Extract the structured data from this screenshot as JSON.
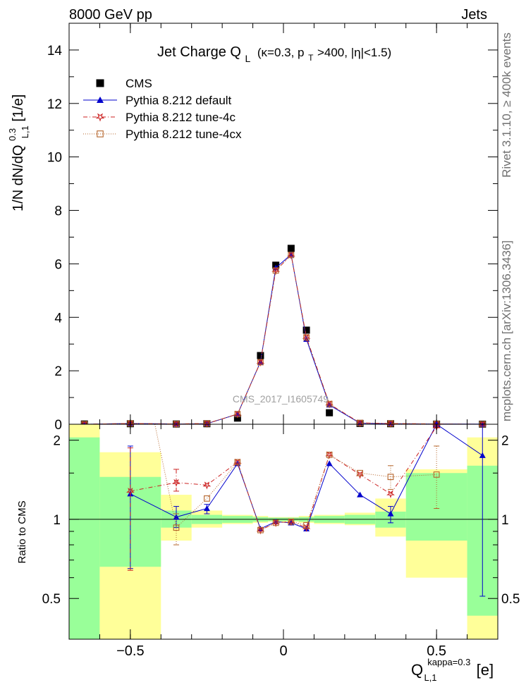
{
  "header": {
    "left": "8000 GeV pp",
    "right": "Jets"
  },
  "side_text": {
    "top": "Rivet 3.1.10, ≥ 400k events",
    "bottom": "mcplots.cern.ch [arXiv:1306.3436]"
  },
  "watermark": "CMS_2017_I1605749",
  "colors": {
    "cms": "#000000",
    "default": "#0000cc",
    "tune4c": "#cc2222",
    "tune4cx": "#b5652b",
    "band_inner": "#99ff99",
    "band_outer": "#ffff99"
  },
  "chart_data": [
    {
      "type": "line",
      "panel": "main",
      "title": "Jet Charge Q_L (κ=0.3, p_T>400, |η|<1.5)",
      "title_parts": {
        "main": "Jet Charge Q",
        "sub": "L",
        "rest1": "(κ=0.3, p",
        "rest_sub": "T",
        "rest2": ">400, |η|<1.5)"
      },
      "ylabel_parts": {
        "a": "1/N dN/dQ",
        "sup": "0.3",
        "sub": "L,1",
        "b": " [1/e]"
      },
      "xlim": [
        -0.7,
        0.7
      ],
      "ylim": [
        0,
        15
      ],
      "yticks": [
        0,
        2,
        4,
        6,
        8,
        10,
        12,
        14
      ],
      "x": [
        -0.65,
        -0.5,
        -0.35,
        -0.25,
        -0.15,
        -0.075,
        -0.025,
        0.025,
        0.075,
        0.15,
        0.25,
        0.35,
        0.5,
        0.65
      ],
      "series": [
        {
          "name": "CMS",
          "key": "cms",
          "marker": "square",
          "values": [
            0.01,
            0.02,
            0.01,
            0.02,
            0.23,
            2.57,
            5.95,
            6.58,
            3.52,
            0.43,
            0.03,
            0.02,
            0.005,
            0.003
          ]
        },
        {
          "name": "Pythia 8.212 default",
          "key": "default",
          "marker": "triangle",
          "values": [
            0.0,
            0.03,
            0.01,
            0.02,
            0.38,
            2.33,
            5.85,
            6.35,
            3.18,
            0.72,
            0.04,
            0.02,
            0.01,
            0.005
          ]
        },
        {
          "name": "Pythia 8.212 tune-4c",
          "key": "tune4c",
          "marker": "star",
          "values": [
            0.0,
            0.03,
            0.01,
            0.03,
            0.38,
            2.32,
            5.75,
            6.33,
            3.25,
            0.76,
            0.05,
            0.03,
            0.01,
            0.0
          ]
        },
        {
          "name": "Pythia 8.212 tune-4cx",
          "key": "tune4cx",
          "marker": "opensquare",
          "values": [
            0.0,
            0.03,
            0.01,
            0.03,
            0.38,
            2.32,
            5.75,
            6.33,
            3.25,
            0.76,
            0.05,
            0.03,
            0.01,
            0.0
          ]
        }
      ]
    },
    {
      "type": "line",
      "panel": "ratio",
      "ylabel": "Ratio to CMS",
      "xlabel_parts": {
        "main": "Q",
        "sup": "kappa=0.3",
        "sub": "L,1",
        "unit": "[e]"
      },
      "xlim": [
        -0.7,
        0.7
      ],
      "ylim": [
        0.35,
        2.3
      ],
      "xticks": [
        -0.5,
        0,
        0.5
      ],
      "xtick_labels": [
        "−0.5",
        "0",
        "0.5"
      ],
      "yticks": [
        0.5,
        1,
        2
      ],
      "ytick_labels": [
        "0.5",
        "1",
        "2"
      ],
      "bands": [
        {
          "x0": -0.7,
          "x1": -0.6,
          "inner": [
            0.35,
            2.05
          ],
          "outer": [
            0.35,
            2.3
          ]
        },
        {
          "x0": -0.6,
          "x1": -0.4,
          "inner": [
            0.66,
            1.45
          ],
          "outer": [
            0.35,
            1.8
          ]
        },
        {
          "x0": -0.4,
          "x1": -0.3,
          "inner": [
            0.93,
            1.08
          ],
          "outer": [
            0.83,
            1.24
          ]
        },
        {
          "x0": -0.3,
          "x1": -0.2,
          "inner": [
            0.96,
            1.04
          ],
          "outer": [
            0.93,
            1.08
          ]
        },
        {
          "x0": -0.2,
          "x1": -0.1,
          "inner": [
            0.97,
            1.03
          ],
          "outer": [
            0.96,
            1.04
          ]
        },
        {
          "x0": -0.1,
          "x1": -0.05,
          "inner": [
            0.98,
            1.02
          ],
          "outer": [
            0.97,
            1.03
          ]
        },
        {
          "x0": -0.05,
          "x1": 0.05,
          "inner": [
            0.985,
            1.015
          ],
          "outer": [
            0.98,
            1.02
          ]
        },
        {
          "x0": 0.05,
          "x1": 0.1,
          "inner": [
            0.98,
            1.02
          ],
          "outer": [
            0.97,
            1.03
          ]
        },
        {
          "x0": 0.1,
          "x1": 0.2,
          "inner": [
            0.97,
            1.03
          ],
          "outer": [
            0.96,
            1.04
          ]
        },
        {
          "x0": 0.2,
          "x1": 0.3,
          "inner": [
            0.96,
            1.04
          ],
          "outer": [
            0.95,
            1.06
          ]
        },
        {
          "x0": 0.3,
          "x1": 0.4,
          "inner": [
            0.93,
            1.07
          ],
          "outer": [
            0.86,
            1.2
          ]
        },
        {
          "x0": 0.4,
          "x1": 0.6,
          "inner": [
            0.83,
            1.5
          ],
          "outer": [
            0.6,
            1.55
          ]
        },
        {
          "x0": 0.6,
          "x1": 0.7,
          "inner": [
            0.43,
            1.6
          ],
          "outer": [
            0.35,
            2.05
          ]
        }
      ],
      "series": [
        {
          "name": "Pythia 8.212 default",
          "key": "default",
          "marker": "triangle",
          "x": [
            -0.5,
            -0.35,
            -0.25,
            -0.15,
            -0.075,
            -0.025,
            0.025,
            0.075,
            0.15,
            0.25,
            0.35,
            0.5,
            0.65
          ],
          "values": [
            1.25,
            1.02,
            1.1,
            1.63,
            0.92,
            0.98,
            0.97,
            0.92,
            1.63,
            1.24,
            1.05,
            2.3,
            1.75
          ],
          "err": [
            [
              0.65,
              1.9
            ],
            [
              0.93,
              1.12
            ],
            [
              1.05,
              1.14
            ],
            null,
            null,
            null,
            null,
            null,
            null,
            null,
            [
              0.97,
              1.12
            ],
            null,
            [
              0.51,
              2.3
            ]
          ]
        },
        {
          "name": "Pythia 8.212 tune-4c",
          "key": "tune4c",
          "marker": "star",
          "x": [
            -0.5,
            -0.35,
            -0.25,
            -0.15,
            -0.075,
            -0.025,
            0.025,
            0.075,
            0.15,
            0.25,
            0.35,
            0.5
          ],
          "values": [
            1.28,
            1.38,
            1.35,
            1.65,
            0.91,
            0.97,
            0.98,
            0.93,
            1.76,
            1.48,
            1.25,
            2.25
          ],
          "err": [
            [
              0.64,
              1.87
            ],
            [
              1.28,
              1.55
            ],
            null,
            null,
            null,
            null,
            null,
            null,
            null,
            null,
            null,
            null
          ]
        },
        {
          "name": "Pythia 8.212 tune-4cx",
          "key": "tune4cx",
          "marker": "opensquare",
          "x": [
            -0.35,
            -0.25,
            -0.15,
            -0.075,
            -0.025,
            0.025,
            0.075,
            0.15,
            0.25,
            0.35,
            0.5
          ],
          "values": [
            0.93,
            1.2,
            1.65,
            0.91,
            0.97,
            0.98,
            0.95,
            1.76,
            1.5,
            1.45,
            1.48
          ],
          "err": [
            [
              0.8,
              1.05
            ],
            null,
            null,
            null,
            null,
            null,
            null,
            null,
            null,
            [
              1.3,
              1.6
            ],
            [
              1.1,
              1.9
            ]
          ],
          "enter_from_top_at": -0.42
        }
      ]
    }
  ]
}
